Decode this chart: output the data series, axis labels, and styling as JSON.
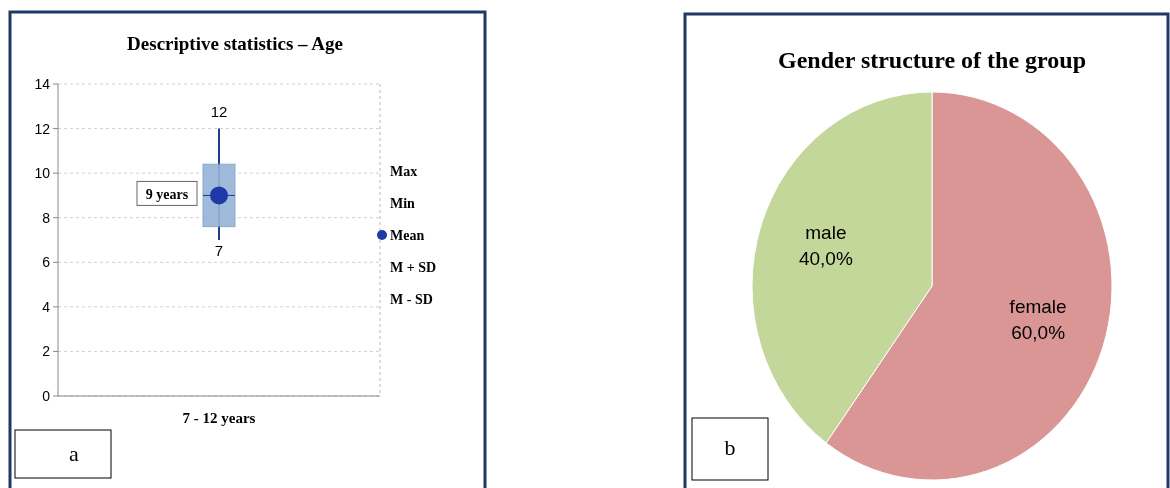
{
  "chart_data": [
    {
      "type": "box",
      "title": "Descriptive statistics – Age",
      "categories": [
        "7 - 12 years"
      ],
      "boxes": [
        {
          "low": 7,
          "q1": 7.6,
          "median": 9,
          "q3": 10.4,
          "high": 12,
          "mean": 9
        }
      ],
      "color": "#95b3d7",
      "ylim": [
        0,
        14
      ],
      "yticks": [
        0,
        2,
        4,
        6,
        8,
        10,
        12,
        14
      ],
      "grid": "y",
      "annotations": [
        {
          "text": "9 years",
          "x": "7 - 12 years",
          "y": 9
        },
        {
          "text": "12",
          "x": "7 - 12 years",
          "y": 12
        },
        {
          "text": "7",
          "x": "7 - 12 years",
          "y": 7
        },
        "Max",
        "Min",
        "Mean",
        "M + SD",
        "M - SD",
        "a"
      ]
    },
    {
      "type": "pie",
      "title": "Gender structure of the group",
      "categories": [
        "male",
        "female"
      ],
      "values": [
        40,
        60
      ],
      "colors": [
        "#c4d79b",
        "#da9694"
      ],
      "value_labels": [
        "40,0%",
        "60,0%"
      ],
      "annotations": [
        "b"
      ]
    }
  ]
}
